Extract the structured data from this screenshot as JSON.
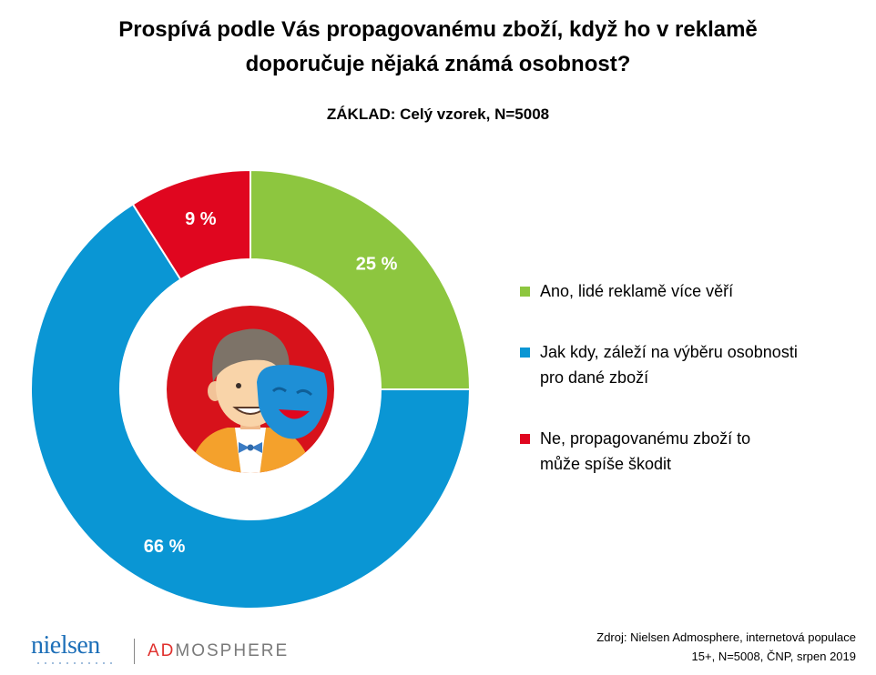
{
  "header": {
    "title_line1": "Prospívá podle Vás propagovanému zboží, když ho v reklamě",
    "title_line2": "doporučuje nějaká známá osobnost?",
    "subtitle": "ZÁKLAD: Celý vzorek, N=5008"
  },
  "chart_data": {
    "type": "pie",
    "variant": "donut",
    "title": "Prospívá podle Vás propagovanému zboží, když ho v reklamě doporučuje nějaká známá osobnost?",
    "subtitle": "ZÁKLAD: Celý vzorek, N=5008",
    "start": "12 o'clock, clockwise",
    "slices": [
      {
        "label": "Ano, lidé reklamě více věří",
        "value": 25,
        "display": "25 %",
        "color": "#8dc63f"
      },
      {
        "label": "Jak kdy, záleží na výběru osobnosti pro dané zboží",
        "value": 66,
        "display": "66 %",
        "color": "#0a96d4"
      },
      {
        "label": "Ne, propagovanému zboží to může spíše škodit",
        "value": 9,
        "display": "9 %",
        "color": "#e0061f"
      }
    ],
    "legend_position": "right"
  },
  "legend": [
    {
      "line1": "Ano, lidé reklamě více věří",
      "line2": "",
      "color": "#8dc63f"
    },
    {
      "line1": "Jak kdy, záleží na výběru osobnosti",
      "line2": "pro dané zboží",
      "color": "#0a96d4"
    },
    {
      "line1": "Ne, propagovanému zboží to",
      "line2": "může spíše škodit",
      "color": "#e0061f"
    }
  ],
  "footer": {
    "source_line1": "Zdroj: Nielsen Admosphere, internetová populace",
    "source_line2": "15+, N=5008, ČNP, srpen 2019",
    "logo_nielsen": "nielsen",
    "logo_ad": "AD",
    "logo_mosphere": "MOSPHERE"
  },
  "illustration": {
    "icon": "celebrity-with-theatre-mask-icon"
  }
}
